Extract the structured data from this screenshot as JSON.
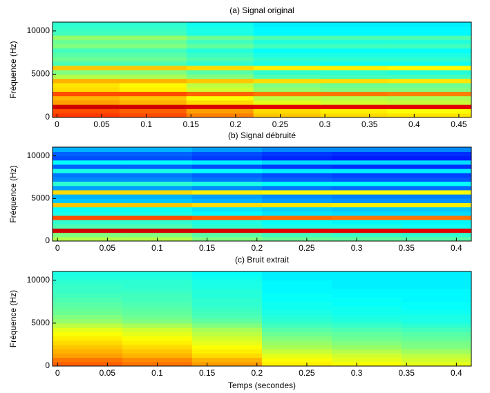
{
  "chart_data": [
    {
      "type": "heatmap",
      "title": "(a) Signal original",
      "ylabel": "Fréquence (Hz)",
      "colormap": "jet",
      "xlim": [
        -0.005,
        0.464
      ],
      "ylim": [
        0,
        11025
      ],
      "xticks": [
        0,
        0.05,
        0.1,
        0.15,
        0.2,
        0.25,
        0.3,
        0.35,
        0.4,
        0.45
      ],
      "yticks": [
        0,
        5000,
        10000
      ],
      "xbins": [
        -0.005,
        0.07,
        0.145,
        0.22,
        0.295,
        0.37,
        0.464
      ],
      "ybins": [
        0,
        500,
        1000,
        1500,
        2000,
        2500,
        3000,
        3500,
        4000,
        4500,
        5000,
        5500,
        6000,
        6500,
        7000,
        7500,
        8000,
        8500,
        9000,
        9500,
        10000,
        10500,
        11025
      ],
      "z": [
        [
          0.82,
          0.8,
          0.75,
          0.68,
          0.66,
          0.65
        ],
        [
          0.8,
          0.78,
          0.72,
          0.66,
          0.64,
          0.62
        ],
        [
          0.92,
          0.92,
          0.91,
          0.9,
          0.9,
          0.9
        ],
        [
          0.72,
          0.7,
          0.66,
          0.6,
          0.58,
          0.57
        ],
        [
          0.7,
          0.68,
          0.62,
          0.56,
          0.55,
          0.54
        ],
        [
          0.8,
          0.8,
          0.78,
          0.76,
          0.76,
          0.75
        ],
        [
          0.66,
          0.64,
          0.58,
          0.52,
          0.5,
          0.5
        ],
        [
          0.65,
          0.63,
          0.56,
          0.5,
          0.48,
          0.48
        ],
        [
          0.7,
          0.7,
          0.68,
          0.66,
          0.66,
          0.65
        ],
        [
          0.55,
          0.54,
          0.5,
          0.45,
          0.44,
          0.44
        ],
        [
          0.5,
          0.5,
          0.46,
          0.42,
          0.42,
          0.41
        ],
        [
          0.68,
          0.68,
          0.66,
          0.64,
          0.64,
          0.63
        ],
        [
          0.45,
          0.45,
          0.42,
          0.4,
          0.39,
          0.39
        ],
        [
          0.48,
          0.48,
          0.45,
          0.42,
          0.42,
          0.42
        ],
        [
          0.46,
          0.46,
          0.43,
          0.4,
          0.4,
          0.4
        ],
        [
          0.44,
          0.44,
          0.41,
          0.38,
          0.38,
          0.38
        ],
        [
          0.5,
          0.5,
          0.47,
          0.44,
          0.44,
          0.44
        ],
        [
          0.48,
          0.48,
          0.44,
          0.41,
          0.41,
          0.41
        ],
        [
          0.52,
          0.52,
          0.48,
          0.45,
          0.45,
          0.45
        ],
        [
          0.44,
          0.44,
          0.4,
          0.37,
          0.37,
          0.37
        ],
        [
          0.43,
          0.43,
          0.4,
          0.37,
          0.37,
          0.37
        ],
        [
          0.42,
          0.42,
          0.39,
          0.36,
          0.36,
          0.36
        ]
      ]
    },
    {
      "type": "heatmap",
      "title": "(b) Signal débruité",
      "ylabel": "Fréquence (Hz)",
      "colormap": "jet",
      "xlim": [
        -0.005,
        0.415
      ],
      "ylim": [
        0,
        11025
      ],
      "xticks": [
        0,
        0.05,
        0.1,
        0.15,
        0.2,
        0.25,
        0.3,
        0.35,
        0.4
      ],
      "yticks": [
        0,
        5000,
        10000
      ],
      "xbins": [
        -0.005,
        0.065,
        0.135,
        0.205,
        0.275,
        0.345,
        0.415
      ],
      "ybins": [
        0,
        500,
        1000,
        1500,
        2000,
        2500,
        3000,
        3500,
        4000,
        4500,
        5000,
        5500,
        6000,
        6500,
        7000,
        7500,
        8000,
        8500,
        9000,
        9500,
        10000,
        10500,
        11025
      ],
      "z": [
        [
          0.55,
          0.55,
          0.5,
          0.48,
          0.47,
          0.46
        ],
        [
          0.5,
          0.5,
          0.46,
          0.44,
          0.43,
          0.42
        ],
        [
          0.92,
          0.92,
          0.91,
          0.9,
          0.9,
          0.9
        ],
        [
          0.45,
          0.45,
          0.42,
          0.4,
          0.4,
          0.39
        ],
        [
          0.42,
          0.42,
          0.4,
          0.38,
          0.37,
          0.37
        ],
        [
          0.8,
          0.8,
          0.78,
          0.77,
          0.76,
          0.76
        ],
        [
          0.4,
          0.4,
          0.37,
          0.35,
          0.34,
          0.34
        ],
        [
          0.38,
          0.38,
          0.35,
          0.33,
          0.32,
          0.32
        ],
        [
          0.68,
          0.68,
          0.66,
          0.65,
          0.64,
          0.64
        ],
        [
          0.32,
          0.32,
          0.3,
          0.28,
          0.27,
          0.27
        ],
        [
          0.3,
          0.3,
          0.28,
          0.26,
          0.25,
          0.25
        ],
        [
          0.66,
          0.66,
          0.64,
          0.63,
          0.62,
          0.62
        ],
        [
          0.28,
          0.28,
          0.26,
          0.24,
          0.23,
          0.23
        ],
        [
          0.42,
          0.42,
          0.4,
          0.38,
          0.38,
          0.38
        ],
        [
          0.26,
          0.26,
          0.24,
          0.22,
          0.21,
          0.21
        ],
        [
          0.24,
          0.24,
          0.22,
          0.2,
          0.19,
          0.19
        ],
        [
          0.4,
          0.4,
          0.38,
          0.36,
          0.36,
          0.36
        ],
        [
          0.22,
          0.22,
          0.2,
          0.18,
          0.17,
          0.17
        ],
        [
          0.38,
          0.38,
          0.36,
          0.34,
          0.34,
          0.34
        ],
        [
          0.2,
          0.2,
          0.18,
          0.16,
          0.15,
          0.15
        ],
        [
          0.22,
          0.22,
          0.2,
          0.18,
          0.17,
          0.17
        ],
        [
          0.3,
          0.3,
          0.28,
          0.26,
          0.26,
          0.26
        ]
      ]
    },
    {
      "type": "heatmap",
      "title": "(c) Bruit extrait",
      "ylabel": "Fréquence (Hz)",
      "xlabel": "Temps (secondes)",
      "colormap": "jet",
      "xlim": [
        -0.005,
        0.415
      ],
      "ylim": [
        0,
        11025
      ],
      "xticks": [
        0,
        0.05,
        0.1,
        0.15,
        0.2,
        0.25,
        0.3,
        0.35,
        0.4
      ],
      "yticks": [
        0,
        5000,
        10000
      ],
      "xbins": [
        -0.005,
        0.065,
        0.135,
        0.205,
        0.275,
        0.345,
        0.415
      ],
      "ybins": [
        0,
        500,
        1000,
        1500,
        2000,
        2500,
        3000,
        3500,
        4000,
        4500,
        5000,
        5500,
        6000,
        6500,
        7000,
        7500,
        8000,
        8500,
        9000,
        9500,
        10000,
        10500,
        11025
      ],
      "z": [
        [
          0.78,
          0.76,
          0.72,
          0.64,
          0.62,
          0.6
        ],
        [
          0.76,
          0.74,
          0.7,
          0.62,
          0.6,
          0.58
        ],
        [
          0.72,
          0.7,
          0.66,
          0.6,
          0.58,
          0.56
        ],
        [
          0.7,
          0.68,
          0.64,
          0.57,
          0.55,
          0.53
        ],
        [
          0.68,
          0.66,
          0.62,
          0.54,
          0.52,
          0.5
        ],
        [
          0.66,
          0.64,
          0.6,
          0.52,
          0.5,
          0.49
        ],
        [
          0.64,
          0.62,
          0.58,
          0.5,
          0.48,
          0.47
        ],
        [
          0.62,
          0.6,
          0.56,
          0.48,
          0.47,
          0.46
        ],
        [
          0.6,
          0.58,
          0.54,
          0.46,
          0.45,
          0.44
        ],
        [
          0.56,
          0.54,
          0.5,
          0.44,
          0.43,
          0.42
        ],
        [
          0.52,
          0.5,
          0.47,
          0.42,
          0.41,
          0.4
        ],
        [
          0.5,
          0.48,
          0.45,
          0.41,
          0.4,
          0.4
        ],
        [
          0.48,
          0.47,
          0.44,
          0.4,
          0.39,
          0.39
        ],
        [
          0.47,
          0.46,
          0.43,
          0.39,
          0.39,
          0.38
        ],
        [
          0.46,
          0.45,
          0.42,
          0.39,
          0.38,
          0.38
        ],
        [
          0.45,
          0.44,
          0.42,
          0.38,
          0.38,
          0.37
        ],
        [
          0.44,
          0.44,
          0.41,
          0.38,
          0.37,
          0.37
        ],
        [
          0.43,
          0.43,
          0.41,
          0.37,
          0.37,
          0.37
        ],
        [
          0.43,
          0.42,
          0.4,
          0.37,
          0.36,
          0.36
        ],
        [
          0.42,
          0.42,
          0.4,
          0.37,
          0.36,
          0.36
        ],
        [
          0.41,
          0.41,
          0.39,
          0.36,
          0.36,
          0.36
        ],
        [
          0.4,
          0.4,
          0.38,
          0.36,
          0.36,
          0.36
        ]
      ]
    }
  ]
}
